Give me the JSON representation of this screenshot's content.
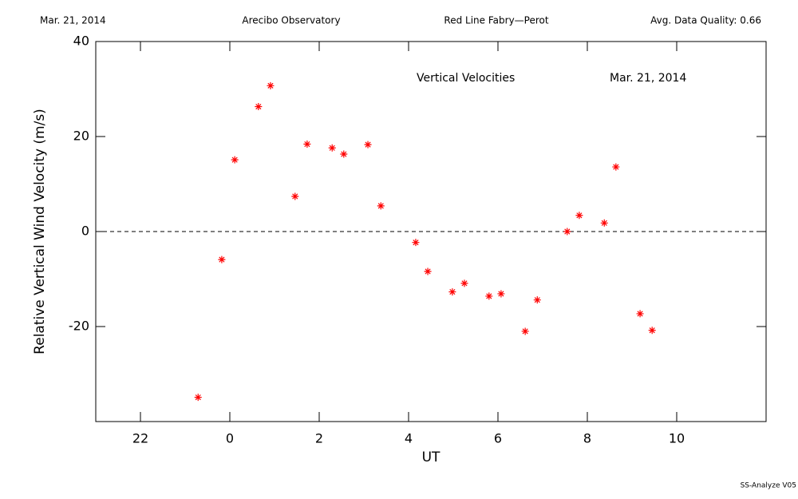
{
  "chart_data": {
    "type": "scatter",
    "header": [
      "Mar. 21, 2014",
      "Arecibo Observatory",
      "Red Line Fabry—Perot",
      "Avg. Data Quality: 0.66"
    ],
    "annotations": [
      "Vertical Velocities",
      "Mar. 21, 2014"
    ],
    "footer": "SS-Analyze V05",
    "x_label": "UT",
    "y_label": "Relative Vertical Wind Velocity (m/s)",
    "xlim": [
      -3,
      12
    ],
    "ylim": [
      -40,
      40
    ],
    "xticks": [
      {
        "value": -2,
        "label": "22"
      },
      0,
      2,
      4,
      6,
      8,
      10
    ],
    "yticks": [
      -20,
      0,
      20,
      40
    ],
    "reference_line": 0,
    "color": "#ff0000",
    "x": [
      -0.71,
      -0.18,
      0.11,
      0.64,
      0.91,
      1.46,
      1.73,
      2.29,
      2.55,
      3.09,
      3.38,
      4.16,
      4.43,
      4.98,
      5.25,
      5.8,
      6.07,
      6.61,
      6.88,
      7.55,
      7.82,
      8.38,
      8.64,
      9.18,
      9.45
    ],
    "values": [
      -34.9,
      -5.9,
      15.1,
      26.3,
      30.7,
      7.4,
      18.4,
      17.6,
      16.3,
      18.3,
      5.4,
      -2.3,
      -8.4,
      -12.7,
      -10.9,
      -13.6,
      -13.1,
      -21.0,
      -14.4,
      0,
      3.4,
      1.8,
      13.6,
      -17.3,
      -20.8
    ]
  }
}
